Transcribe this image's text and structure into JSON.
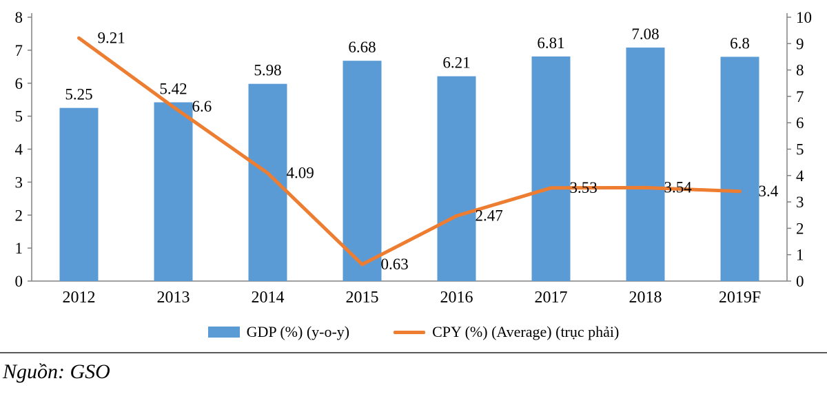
{
  "chart_data": {
    "type": "combo",
    "categories": [
      "2012",
      "2013",
      "2014",
      "2015",
      "2016",
      "2017",
      "2018",
      "2019F"
    ],
    "series": [
      {
        "name": "GDP (%) (y-o-y)",
        "type": "bar",
        "axis": "left",
        "values": [
          5.25,
          5.42,
          5.98,
          6.68,
          6.21,
          6.81,
          7.08,
          6.8
        ]
      },
      {
        "name": "CPY (%) (Average) (trục phải)",
        "type": "line",
        "axis": "right",
        "values": [
          9.21,
          6.6,
          4.09,
          0.63,
          2.47,
          3.53,
          3.54,
          3.4
        ]
      }
    ],
    "left_axis": {
      "min": 0,
      "max": 8,
      "step": 1
    },
    "right_axis": {
      "min": 0,
      "max": 10,
      "step": 1
    },
    "grid": false,
    "legend_position": "bottom",
    "data_labels": true
  },
  "legend": {
    "gdp_label": "GDP (%) (y-o-y)",
    "cpy_label": "CPY (%) (Average) (trục phải)"
  },
  "source": {
    "text": "Nguồn: GSO"
  },
  "colors": {
    "bar": "#5B9BD5",
    "line": "#ED7D31",
    "axis": "#808080",
    "text": "#000000"
  }
}
